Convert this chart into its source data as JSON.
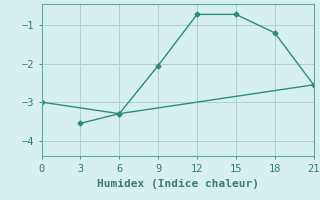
{
  "line1_x": [
    0,
    6,
    9,
    12,
    15,
    18,
    21
  ],
  "line1_y": [
    -3.0,
    -3.3,
    -2.05,
    -0.72,
    -0.72,
    -1.2,
    -2.55
  ],
  "line2_x": [
    3,
    6,
    21
  ],
  "line2_y": [
    -3.55,
    -3.3,
    -2.55
  ],
  "line_color": "#2e8b7a",
  "marker": "D",
  "markersize": 2.5,
  "xlabel": "Humidex (Indice chaleur)",
  "xlim": [
    0,
    21
  ],
  "ylim": [
    -4.4,
    -0.45
  ],
  "xticks": [
    0,
    3,
    6,
    9,
    12,
    15,
    18,
    21
  ],
  "yticks": [
    -4,
    -3,
    -2,
    -1
  ],
  "bg_color": "#d6f0ee",
  "grid_color": "#aecfcb",
  "font_family": "monospace",
  "xlabel_fontsize": 8,
  "tick_fontsize": 7.5,
  "linewidth": 1.0
}
